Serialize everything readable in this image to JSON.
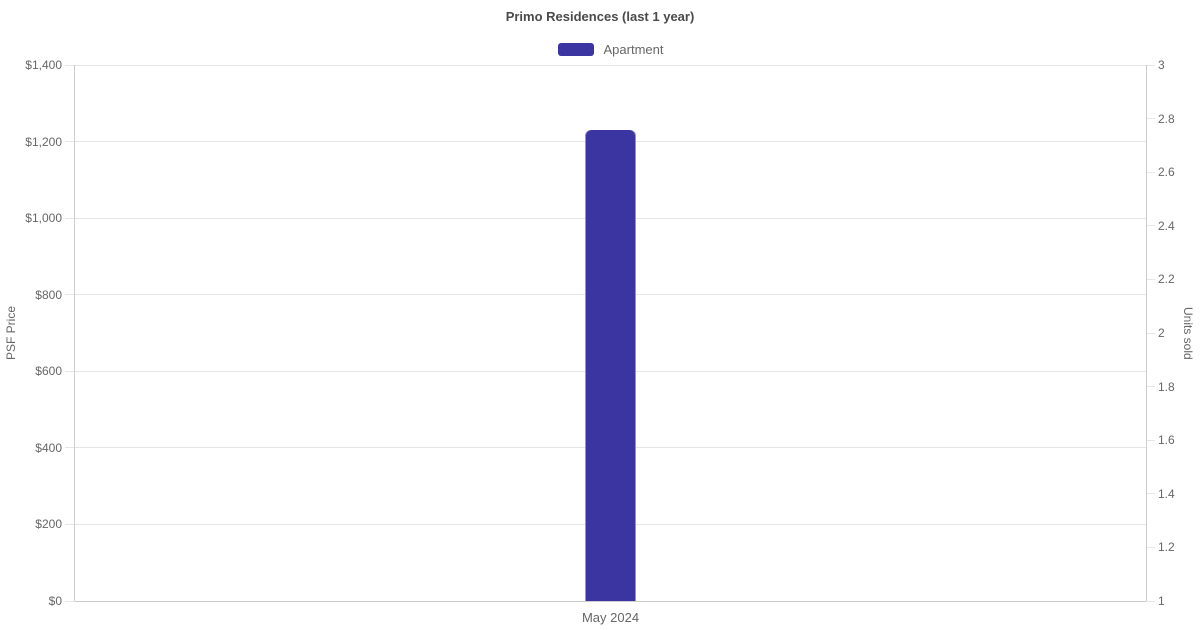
{
  "chart_data": {
    "type": "bar",
    "title": "Primo Residences (last 1 year)",
    "categories": [
      "May 2024"
    ],
    "series": [
      {
        "name": "Apartment",
        "type": "column",
        "color": "#3b35a2",
        "yaxis": "left",
        "values": [
          1230
        ]
      }
    ],
    "left_axis": {
      "label": "PSF Price",
      "min": 0,
      "max": 1400,
      "tick_step": 200,
      "tick_prefix": "$"
    },
    "right_axis": {
      "label": "Units sold",
      "min": 1,
      "max": 3,
      "tick_step": 0.2
    },
    "legend": {
      "position": "top",
      "items": [
        "Apartment"
      ]
    },
    "grid": true
  },
  "colors": {
    "bar": "#3b35a2",
    "gridline": "#e6e6e6",
    "axis_line": "#cccccc",
    "tick_text": "#666666",
    "title_text": "#4a4a4a",
    "axis_title_text": "#666666",
    "background": "#ffffff"
  }
}
